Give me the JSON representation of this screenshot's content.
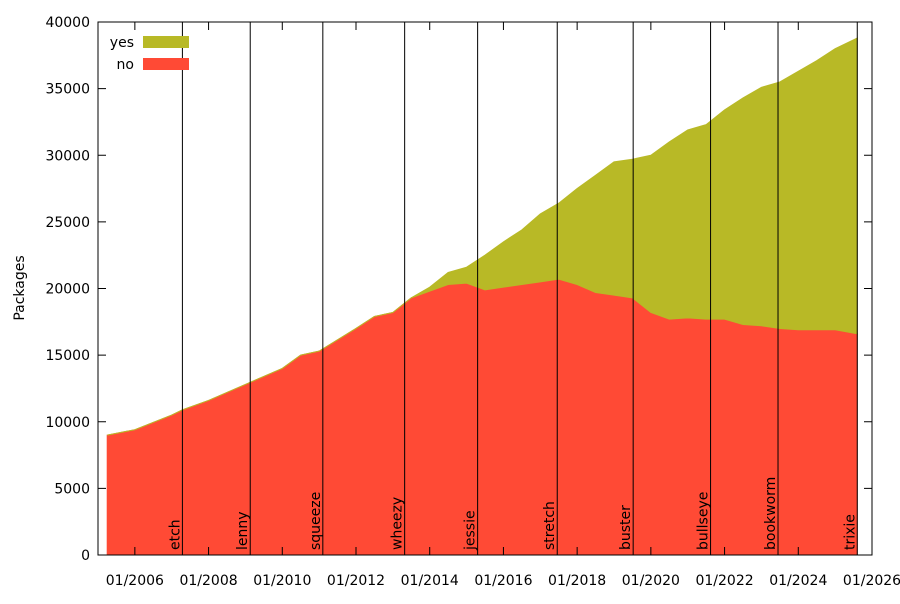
{
  "chart_data": {
    "type": "area",
    "stacked": true,
    "title": "",
    "xlabel": "",
    "ylabel": "Packages",
    "xlim": [
      2005.0,
      2026.0
    ],
    "ylim": [
      0,
      40000
    ],
    "yticks": [
      0,
      5000,
      10000,
      15000,
      20000,
      25000,
      30000,
      35000,
      40000
    ],
    "xticks": [
      {
        "value": 2006,
        "label": "01/2006"
      },
      {
        "value": 2008,
        "label": "01/2008"
      },
      {
        "value": 2010,
        "label": "01/2010"
      },
      {
        "value": 2012,
        "label": "01/2012"
      },
      {
        "value": 2014,
        "label": "01/2014"
      },
      {
        "value": 2016,
        "label": "01/2016"
      },
      {
        "value": 2018,
        "label": "01/2018"
      },
      {
        "value": 2020,
        "label": "01/2020"
      },
      {
        "value": 2022,
        "label": "01/2022"
      },
      {
        "value": 2024,
        "label": "01/2024"
      },
      {
        "value": 2026,
        "label": "01/2026"
      }
    ],
    "legend_position": "top-left",
    "x": [
      2005.25,
      2006.0,
      2007.0,
      2007.3,
      2008.0,
      2009.0,
      2010.0,
      2010.5,
      2011.0,
      2012.0,
      2012.5,
      2013.0,
      2013.5,
      2014.0,
      2014.5,
      2015.0,
      2015.5,
      2016.0,
      2016.5,
      2017.0,
      2017.5,
      2018.0,
      2018.5,
      2019.0,
      2019.5,
      2020.0,
      2020.5,
      2021.0,
      2021.5,
      2022.0,
      2022.5,
      2023.0,
      2023.5,
      2024.0,
      2024.5,
      2025.0,
      2025.6
    ],
    "series": [
      {
        "name": "no",
        "color": "#ff4a35",
        "values": [
          9000,
          9400,
          10500,
          10900,
          11600,
          12800,
          14000,
          15000,
          15300,
          17000,
          17900,
          18200,
          19300,
          19800,
          20300,
          20400,
          19900,
          20100,
          20300,
          20500,
          20700,
          20300,
          19700,
          19500,
          19300,
          18200,
          17700,
          17800,
          17700,
          17700,
          17300,
          17200,
          17000,
          16900,
          16900,
          16900,
          16600
        ]
      },
      {
        "name": "yes",
        "color": "#b8b926",
        "values": [
          0,
          0,
          0,
          0,
          0,
          0,
          0,
          0,
          0,
          0,
          0,
          0,
          0,
          300,
          900,
          1200,
          2600,
          3400,
          4100,
          5100,
          5700,
          7200,
          8800,
          10000,
          10400,
          11800,
          13300,
          14100,
          14600,
          15700,
          17000,
          17900,
          18500,
          19400,
          20200,
          21100,
          22200
        ]
      }
    ],
    "annotations": [
      {
        "label": "etch",
        "x": 2007.29
      },
      {
        "label": "lenny",
        "x": 2009.13
      },
      {
        "label": "squeeze",
        "x": 2011.1
      },
      {
        "label": "wheezy",
        "x": 2013.32
      },
      {
        "label": "jessie",
        "x": 2015.3
      },
      {
        "label": "stretch",
        "x": 2017.46
      },
      {
        "label": "buster",
        "x": 2019.52
      },
      {
        "label": "bullseye",
        "x": 2021.62
      },
      {
        "label": "bookworm",
        "x": 2023.45
      },
      {
        "label": "trixie",
        "x": 2025.6
      }
    ]
  }
}
